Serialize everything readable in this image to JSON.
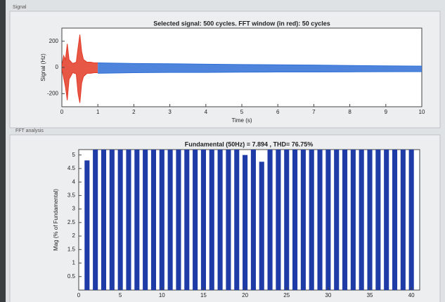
{
  "signal_panel": {
    "label": "Signal"
  },
  "fft_panel": {
    "label": "FFT analysis"
  },
  "chart_data": [
    {
      "type": "band",
      "title": "Selected signal: 500 cycles. FFT window (in red): 50 cycles",
      "xlabel": "Time (s)",
      "ylabel": "Signal (Hz)",
      "xlim": [
        0,
        10
      ],
      "xticks": [
        0,
        1,
        2,
        3,
        4,
        5,
        6,
        7,
        8,
        9,
        10
      ],
      "ylim": [
        -300,
        300
      ],
      "yticks": [
        -200,
        0,
        200
      ],
      "series": [
        {
          "color": "#e33a26",
          "x": [
            0,
            0.05,
            0.1,
            0.15,
            0.2,
            0.3,
            0.4,
            0.45,
            0.5,
            0.55,
            0.6,
            0.7,
            0.8,
            0.9,
            1
          ],
          "upper": [
            10,
            90,
            60,
            180,
            60,
            30,
            40,
            150,
            250,
            120,
            60,
            40,
            40,
            35,
            35
          ],
          "lower": [
            -10,
            -80,
            -150,
            -250,
            -90,
            -40,
            -50,
            -200,
            -270,
            -120,
            -70,
            -45,
            -45,
            -40,
            -40
          ]
        },
        {
          "color": "#2f6fd6",
          "x": [
            1,
            2,
            3,
            4,
            5,
            6,
            7,
            8,
            9,
            10
          ],
          "upper": [
            35,
            30,
            28,
            25,
            22,
            20,
            18,
            15,
            12,
            10
          ],
          "lower": [
            -45,
            -40,
            -38,
            -38,
            -36,
            -35,
            -35,
            -34,
            -33,
            -32
          ]
        }
      ]
    },
    {
      "type": "bar",
      "title": "Fundamental (50Hz) = 7.894 , THD= 76.75%",
      "ylabel": "Mag (% of Fundamental)",
      "color": "#1f3ca6",
      "xlim": [
        0,
        41
      ],
      "xticks": [
        0,
        5,
        10,
        15,
        20,
        25,
        30,
        35,
        40
      ],
      "ylim": [
        0,
        5.2
      ],
      "yticks": [
        0.5,
        1,
        1.5,
        2,
        2.5,
        3,
        3.5,
        4,
        4.5,
        5
      ],
      "x": [
        1,
        2,
        3,
        4,
        5,
        6,
        7,
        8,
        9,
        10,
        11,
        12,
        13,
        14,
        15,
        16,
        17,
        18,
        19,
        20,
        21,
        22,
        23,
        24,
        25,
        26,
        27,
        28,
        29,
        30,
        31,
        32,
        33,
        34,
        35,
        36,
        37,
        38,
        39,
        40
      ],
      "values": [
        4.8,
        5.2,
        5.2,
        5.2,
        5.2,
        5.2,
        5.2,
        5.2,
        5.2,
        5.2,
        5.2,
        5.2,
        5.2,
        5.2,
        5.2,
        5.2,
        5.2,
        5.2,
        5.2,
        5.0,
        5.2,
        4.75,
        5.2,
        5.2,
        5.2,
        5.2,
        5.2,
        5.2,
        5.2,
        5.2,
        5.2,
        5.2,
        5.2,
        5.2,
        5.2,
        5.2,
        5.2,
        5.2,
        5.2,
        5.2
      ]
    }
  ]
}
